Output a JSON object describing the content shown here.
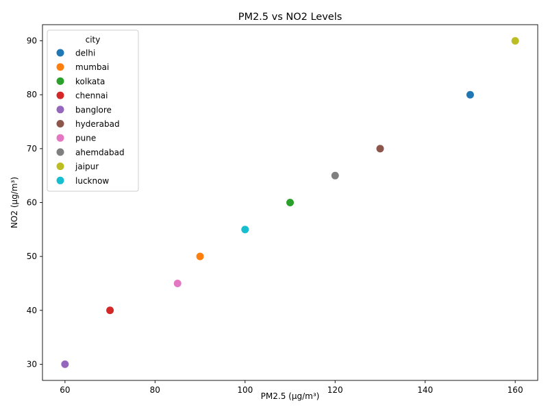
{
  "chart_data": {
    "type": "scatter",
    "title": "PM2.5 vs NO2 Levels",
    "xlabel": "PM2.5 (µg/m³)",
    "ylabel": "NO2 (µg/m³)",
    "xlim": [
      55,
      165
    ],
    "ylim": [
      27,
      93
    ],
    "xticks": [
      60,
      80,
      100,
      120,
      140,
      160
    ],
    "yticks": [
      30,
      40,
      50,
      60,
      70,
      80,
      90
    ],
    "grid": false,
    "legend": {
      "title": "city",
      "placement": "upper-left"
    },
    "series": [
      {
        "name": "delhi",
        "color": "#1f77b4",
        "x": 150,
        "y": 80
      },
      {
        "name": "mumbai",
        "color": "#ff7f0e",
        "x": 90,
        "y": 50
      },
      {
        "name": "kolkata",
        "color": "#2ca02c",
        "x": 110,
        "y": 60
      },
      {
        "name": "chennai",
        "color": "#d62728",
        "x": 70,
        "y": 40
      },
      {
        "name": "banglore",
        "color": "#9467bd",
        "x": 60,
        "y": 30
      },
      {
        "name": "hyderabad",
        "color": "#8c564b",
        "x": 130,
        "y": 70
      },
      {
        "name": "pune",
        "color": "#e377c2",
        "x": 85,
        "y": 45
      },
      {
        "name": "ahemdabad",
        "color": "#7f7f7f",
        "x": 120,
        "y": 65
      },
      {
        "name": "jaipur",
        "color": "#bcbd22",
        "x": 160,
        "y": 90
      },
      {
        "name": "lucknow",
        "color": "#17becf",
        "x": 100,
        "y": 55
      }
    ]
  }
}
